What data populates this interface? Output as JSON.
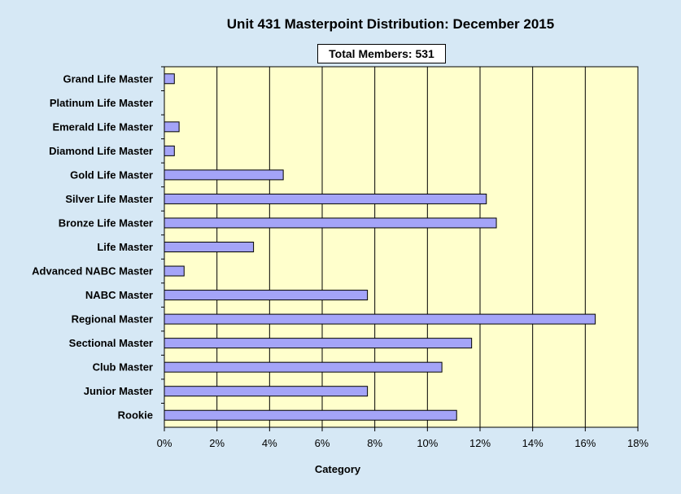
{
  "chart_data": {
    "type": "bar",
    "orientation": "horizontal",
    "title": "Unit 431 Masterpoint Distribution: December 2015",
    "annotation": "Total Members: 531",
    "xlabel": "Category",
    "ylabel": "",
    "xlim": [
      0,
      18
    ],
    "x_ticks": [
      0,
      2,
      4,
      6,
      8,
      10,
      12,
      14,
      16,
      18
    ],
    "x_tick_suffix": "%",
    "grid": "vertical",
    "legend": "none",
    "categories": [
      "Grand Life Master",
      "Platinum Life Master",
      "Emerald Life Master",
      "Diamond Life Master",
      "Gold Life Master",
      "Silver Life Master",
      "Bronze Life Master",
      "Life Master",
      "Advanced NABC Master",
      "NABC Master",
      "Regional Master",
      "Sectional Master",
      "Club Master",
      "Junior Master",
      "Rookie"
    ],
    "values": [
      0.38,
      0,
      0.56,
      0.38,
      4.52,
      12.24,
      12.62,
      3.39,
      0.75,
      7.72,
      16.38,
      11.68,
      10.55,
      7.72,
      11.11
    ],
    "colors": {
      "bar_fill": "#a4a4f8",
      "bar_stroke": "#000000",
      "plot_background": "#ffffcc",
      "page_background": "#d6e8f5"
    }
  }
}
